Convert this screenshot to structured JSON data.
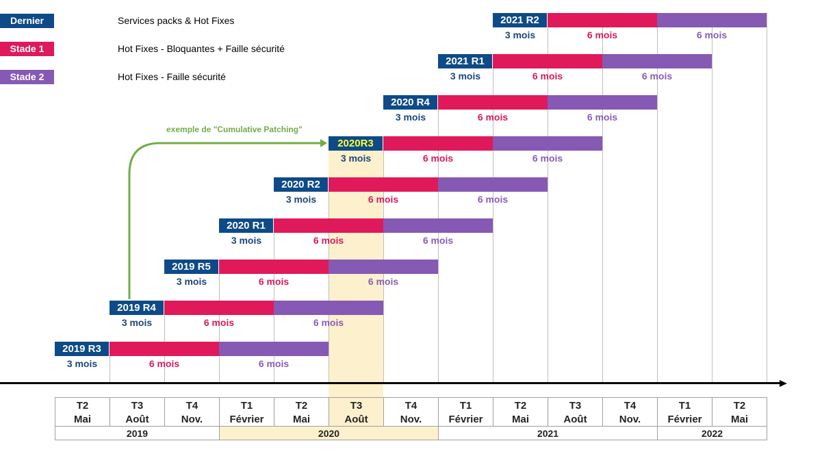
{
  "legend": [
    {
      "label": "Dernier Update",
      "text": "Services packs & Hot Fixes",
      "color": "#0e4a87"
    },
    {
      "label": "Stade 1",
      "text": "Hot Fixes - Bloquantes + Faille sécurité",
      "color": "#e0195b"
    },
    {
      "label": "Stade 2",
      "text": "Hot Fixes - Faille sécurité",
      "color": "#8659b5"
    }
  ],
  "releases": [
    {
      "name": "2019 R3",
      "start": 0,
      "dur_update": "3 mois",
      "dur_stade1": "6 mois",
      "dur_stade2": "6 mois",
      "highlight": false
    },
    {
      "name": "2019 R4",
      "start": 1,
      "dur_update": "3 mois",
      "dur_stade1": "6 mois",
      "dur_stade2": "6 mois",
      "highlight": false
    },
    {
      "name": "2019 R5",
      "start": 2,
      "dur_update": "3 mois",
      "dur_stade1": "6 mois",
      "dur_stade2": "6 mois",
      "highlight": false
    },
    {
      "name": "2020 R1",
      "start": 3,
      "dur_update": "3 mois",
      "dur_stade1": "6 mois",
      "dur_stade2": "6 mois",
      "highlight": false
    },
    {
      "name": "2020 R2",
      "start": 4,
      "dur_update": "3 mois",
      "dur_stade1": "6 mois",
      "dur_stade2": "6 mois",
      "highlight": false
    },
    {
      "name": "2020R3",
      "start": 5,
      "dur_update": "3 mois",
      "dur_stade1": "6 mois",
      "dur_stade2": "6 mois",
      "highlight": true
    },
    {
      "name": "2020 R4",
      "start": 6,
      "dur_update": "3 mois",
      "dur_stade1": "6 mois",
      "dur_stade2": "6 mois",
      "highlight": false
    },
    {
      "name": "2021 R1",
      "start": 7,
      "dur_update": "3 mois",
      "dur_stade1": "6 mois",
      "dur_stade2": "6 mois",
      "highlight": false
    },
    {
      "name": "2021 R2",
      "start": 8,
      "dur_update": "3 mois",
      "dur_stade1": "6 mois",
      "dur_stade2": "6 mois",
      "highlight": false
    }
  ],
  "quarters": [
    {
      "q": "T2",
      "month": "Mai"
    },
    {
      "q": "T3",
      "month": "Août"
    },
    {
      "q": "T4",
      "month": "Nov."
    },
    {
      "q": "T1",
      "month": "Février"
    },
    {
      "q": "T2",
      "month": "Mai"
    },
    {
      "q": "T3",
      "month": "Août"
    },
    {
      "q": "T4",
      "month": "Nov."
    },
    {
      "q": "T1",
      "month": "Février"
    },
    {
      "q": "T2",
      "month": "Mai"
    },
    {
      "q": "T3",
      "month": "Août"
    },
    {
      "q": "T4",
      "month": "Nov."
    },
    {
      "q": "T1",
      "month": "Février"
    },
    {
      "q": "T2",
      "month": "Mai"
    }
  ],
  "years": [
    {
      "label": "2019",
      "quarters": 3,
      "highlight": false
    },
    {
      "label": "2020",
      "quarters": 4,
      "highlight": true
    },
    {
      "label": "2021",
      "quarters": 4,
      "highlight": false
    },
    {
      "label": "2022",
      "quarters": 2,
      "highlight": false
    }
  ],
  "highlight_quarter": 5,
  "annotation": "exemple de \"Cumulative Patching\"",
  "colors": {
    "update": "#0e4a87",
    "stade1": "#e0195b",
    "stade2": "#8659b5",
    "band": "#fdf1cd",
    "arrow": "#70ad47"
  }
}
